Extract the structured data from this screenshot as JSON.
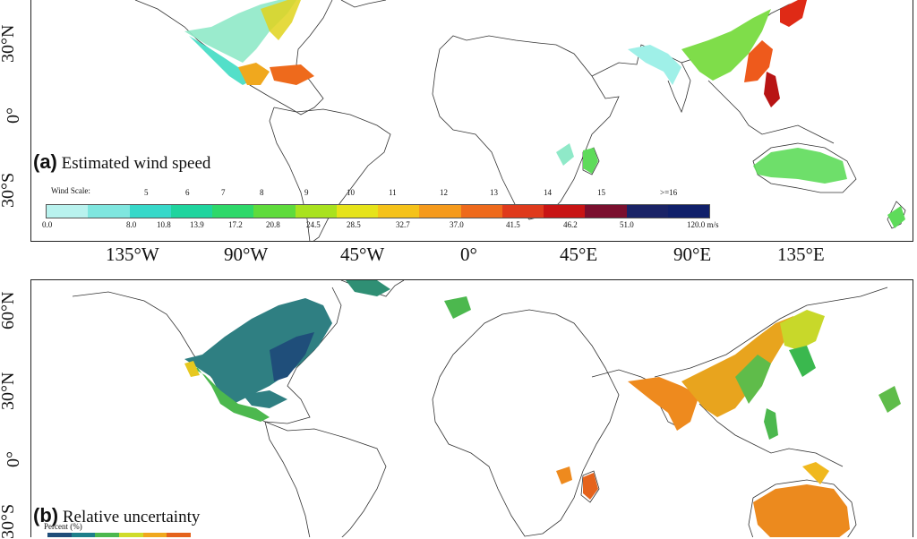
{
  "panel_a": {
    "letter": "(a)",
    "title": "Estimated wind speed",
    "lat_labels": [
      "30°N",
      "0°",
      "30°S"
    ],
    "lon_labels": [
      "135°W",
      "90°W",
      "45°W",
      "0°",
      "45°E",
      "90°E",
      "135°E"
    ],
    "scale": {
      "label": "Wind Scale:",
      "top_ticks": [
        "5",
        "6",
        "7",
        "8",
        "9",
        "10",
        "11",
        "12",
        "13",
        "14",
        "15",
        ">=16"
      ],
      "bottom_ticks": [
        "0.0",
        "8.0",
        "10.8",
        "13.9",
        "17.2",
        "20.8",
        "24.5",
        "28.5",
        "32.7",
        "37.0",
        "41.5",
        "46.2",
        "51.0",
        "120.0 m/s"
      ],
      "colors": [
        "#b9f2ee",
        "#7fe6df",
        "#37d8c9",
        "#1fd49e",
        "#2ed86a",
        "#5fdb3c",
        "#a9e21f",
        "#e6e31a",
        "#f5c21a",
        "#f59a1c",
        "#ee6a1c",
        "#df3a1c",
        "#c81414",
        "#7a0f2e",
        "#1a2366",
        "#10206a"
      ]
    }
  },
  "panel_b": {
    "letter": "(b)",
    "title": "Relative uncertainty",
    "lat_labels": [
      "60°N",
      "30°N",
      "0°",
      "30°S"
    ],
    "scale": {
      "label": "Percent (%)",
      "colors": [
        "#1f4e7a",
        "#1d7f8a",
        "#4cb84e",
        "#cfdc2a",
        "#f0a81e",
        "#e5631c"
      ]
    }
  }
}
